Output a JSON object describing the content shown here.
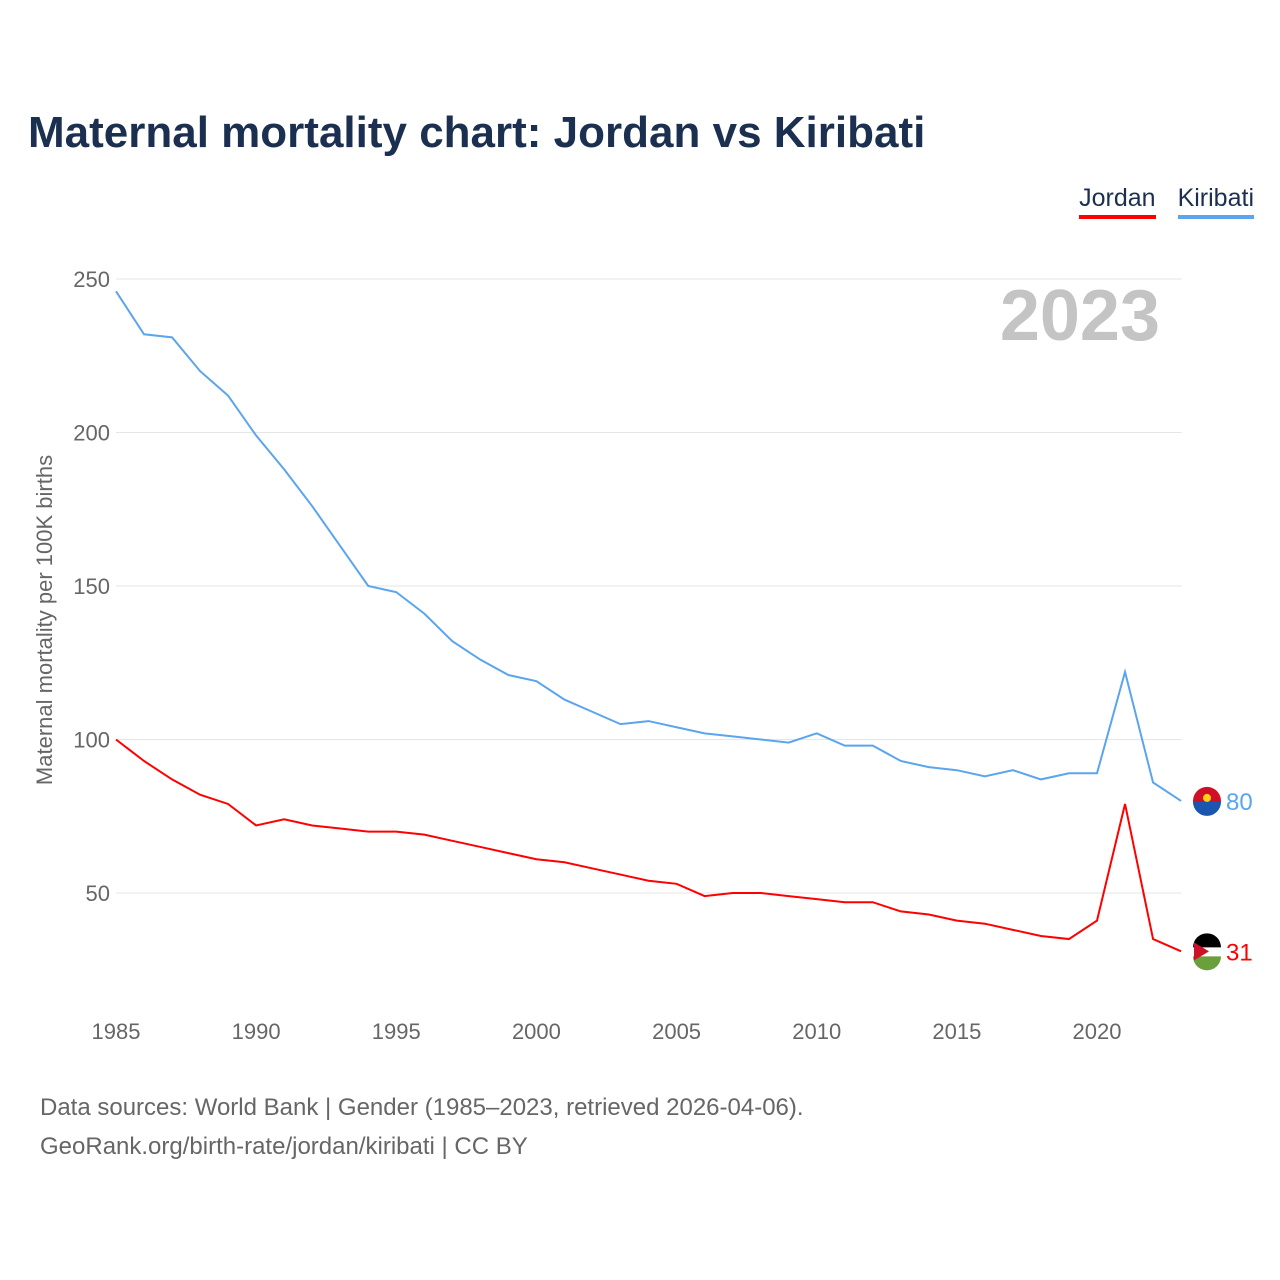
{
  "chart_data": {
    "type": "line",
    "title": "Maternal mortality chart: Jordan vs Kiribati",
    "ylabel": "Maternal mortality per 100K births",
    "xlabel": "",
    "year_label": "2023",
    "xlim": [
      1985,
      2023
    ],
    "ylim": [
      17,
      260
    ],
    "xticks": [
      1985,
      1990,
      1995,
      2000,
      2005,
      2010,
      2015,
      2020
    ],
    "yticks": [
      50,
      100,
      150,
      200,
      250
    ],
    "grid": true,
    "legend_placement": "top-right",
    "x": [
      1985,
      1986,
      1987,
      1988,
      1989,
      1990,
      1991,
      1992,
      1993,
      1994,
      1995,
      1996,
      1997,
      1998,
      1999,
      2000,
      2001,
      2002,
      2003,
      2004,
      2005,
      2006,
      2007,
      2008,
      2009,
      2010,
      2011,
      2012,
      2013,
      2014,
      2015,
      2016,
      2017,
      2018,
      2019,
      2020,
      2021,
      2022,
      2023
    ],
    "series": [
      {
        "name": "Jordan",
        "color": "#ff0000",
        "end_label": "31",
        "values": [
          100,
          93,
          87,
          82,
          79,
          72,
          74,
          72,
          71,
          70,
          70,
          69,
          67,
          65,
          63,
          61,
          60,
          58,
          56,
          54,
          53,
          49,
          50,
          50,
          49,
          48,
          47,
          47,
          44,
          43,
          41,
          40,
          38,
          36,
          35,
          41,
          79,
          35,
          31
        ]
      },
      {
        "name": "Kiribati",
        "color": "#5aa5ee",
        "end_label": "80",
        "values": [
          246,
          232,
          231,
          220,
          212,
          199,
          188,
          176,
          163,
          150,
          148,
          141,
          132,
          126,
          121,
          119,
          113,
          109,
          105,
          106,
          104,
          102,
          101,
          100,
          99,
          102,
          98,
          98,
          93,
          91,
          90,
          88,
          90,
          87,
          89,
          89,
          122,
          86,
          80
        ]
      }
    ]
  },
  "footer": {
    "line1": "Data sources: World Bank | Gender (1985–2023, retrieved 2026-04-06).",
    "line2": "GeoRank.org/birth-rate/jordan/kiribati | CC BY"
  }
}
